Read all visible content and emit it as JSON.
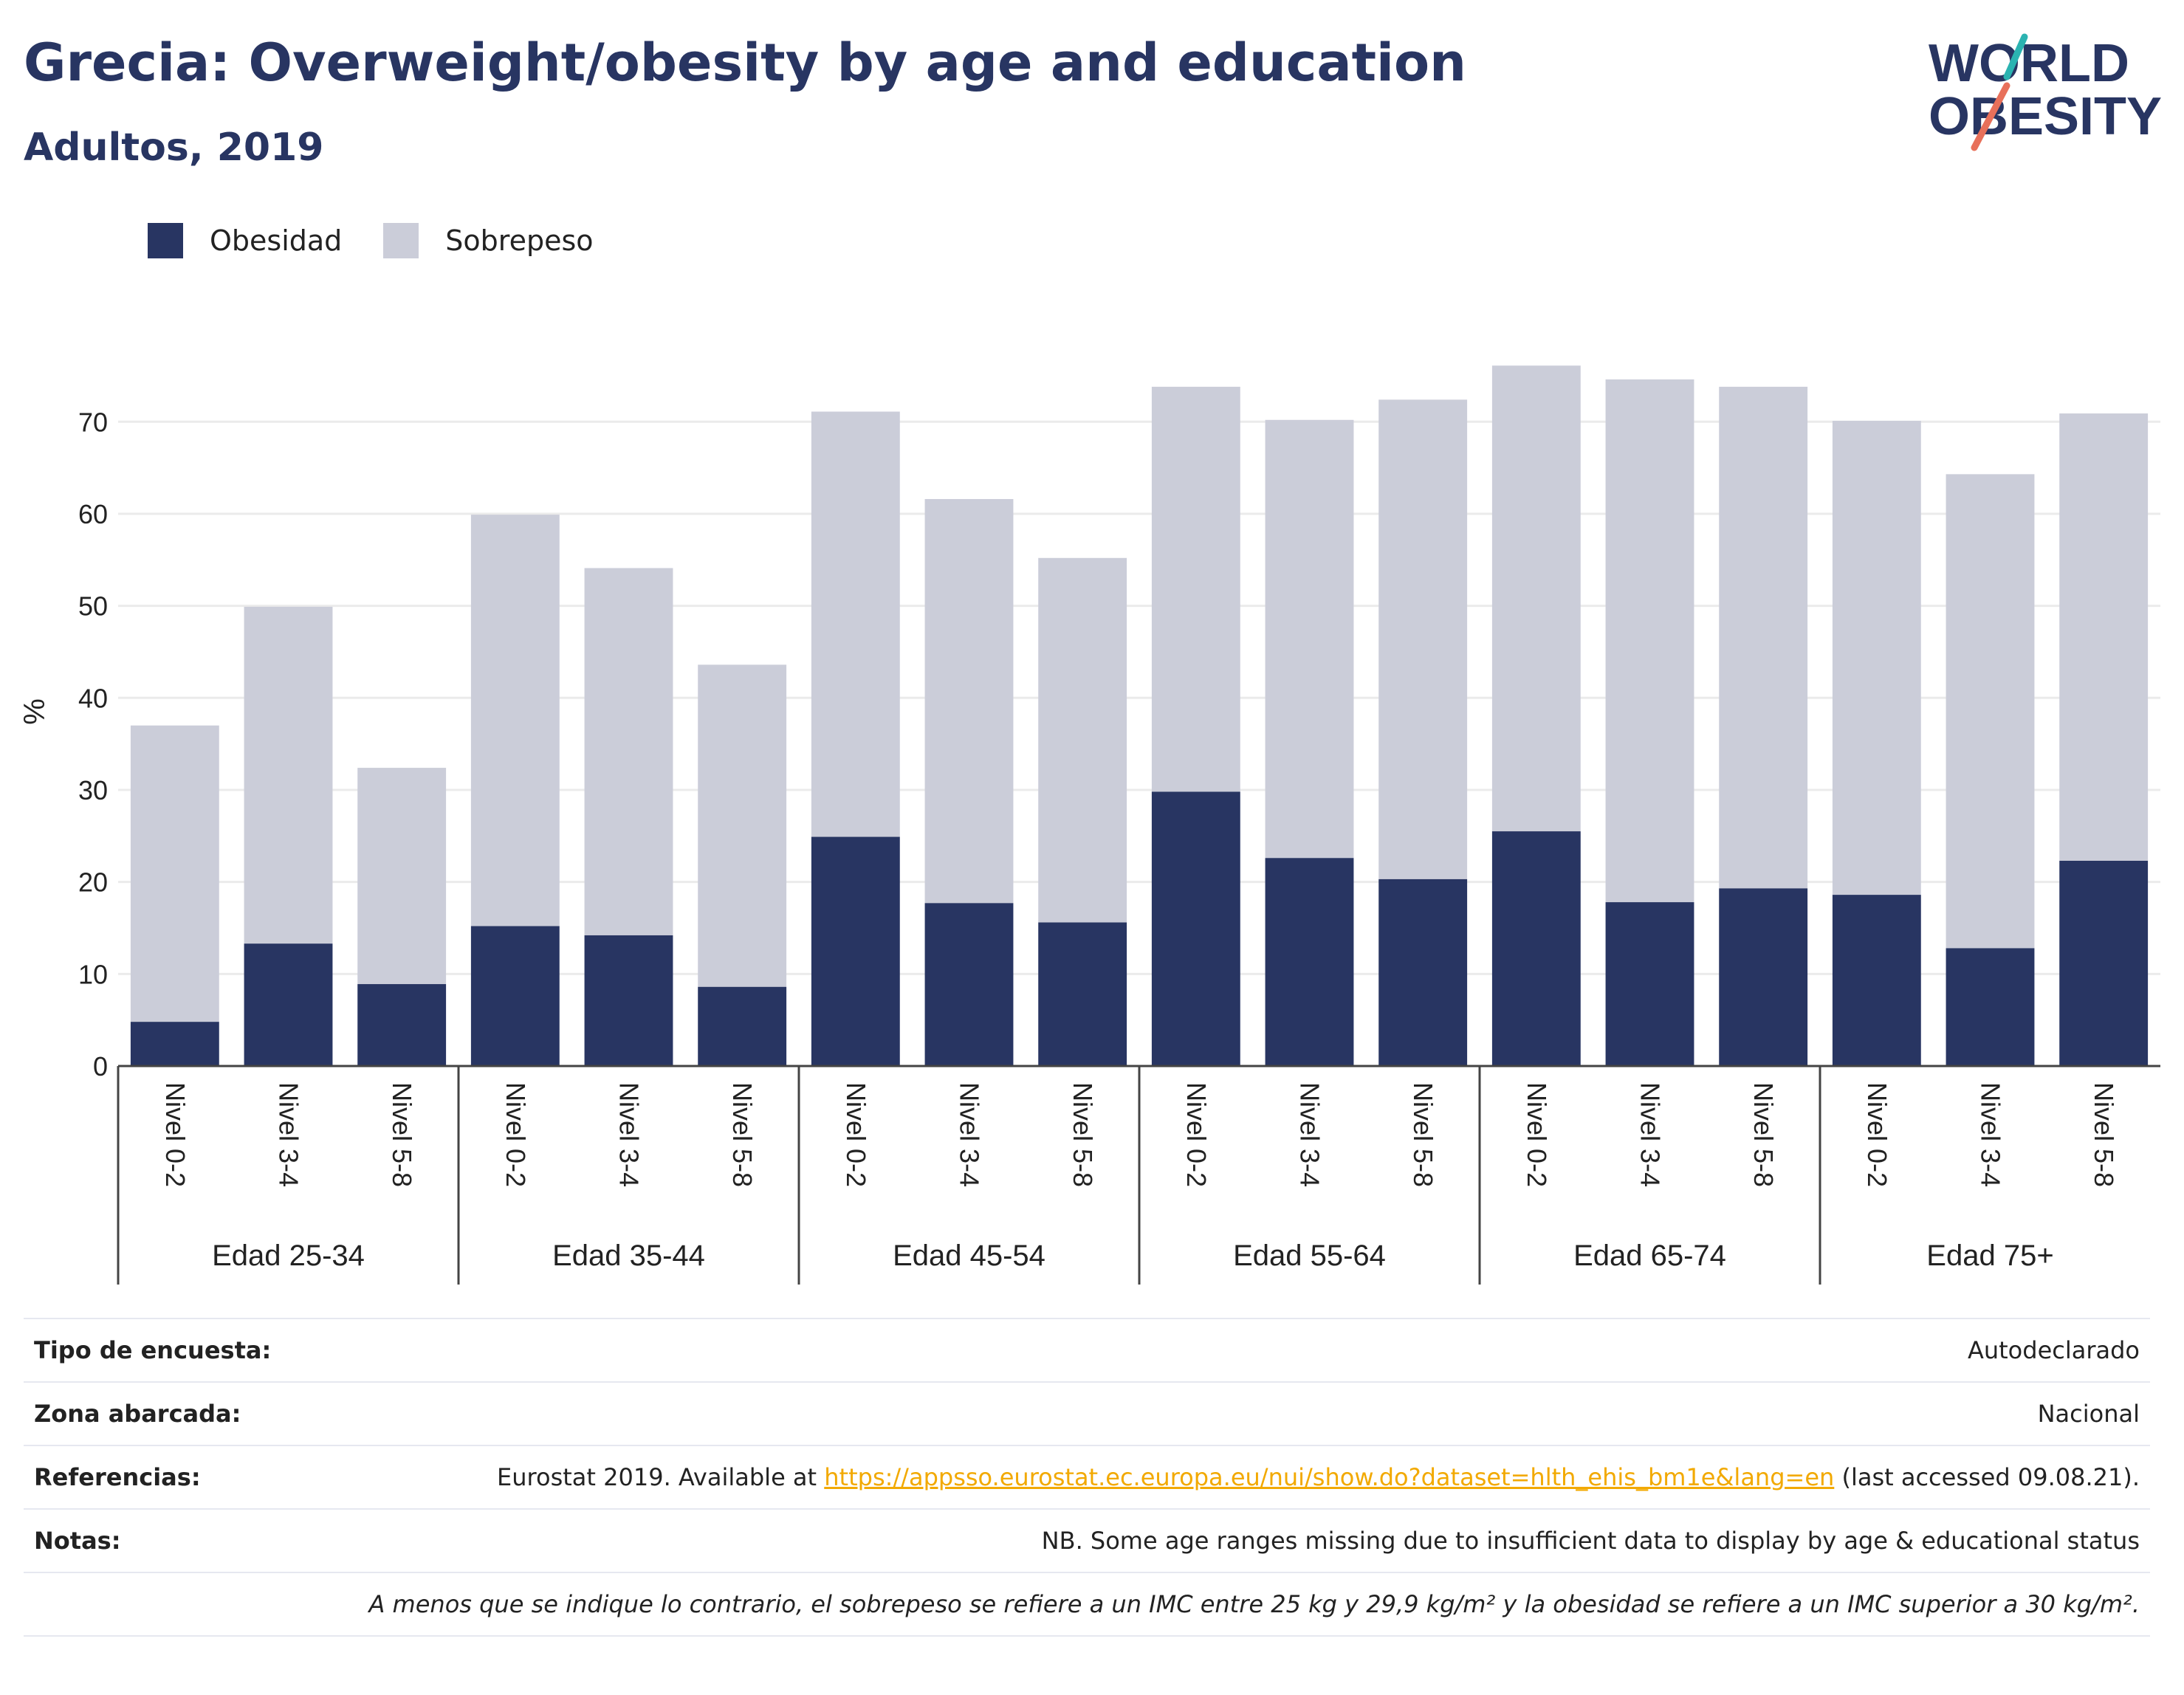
{
  "header": {
    "title": "Grecia: Overweight/obesity by age and education",
    "subtitle": "Adultos, 2019"
  },
  "logo": {
    "line1": "WORLD",
    "line2": "OBESITY",
    "colors": {
      "text": "#283562",
      "slash_top": "#2bb3b1",
      "slash_bottom": "#e8705a"
    }
  },
  "colors": {
    "obesidad": "#283562",
    "sobrepeso": "#cbcdd9",
    "axis": "#444444",
    "grid": "#ebebeb",
    "link": "#f2a900"
  },
  "chart_data": {
    "type": "bar",
    "stacked": true,
    "ylabel": "%",
    "ylim": [
      0,
      77
    ],
    "yticks": [
      0,
      10,
      20,
      30,
      40,
      50,
      60,
      70
    ],
    "grid": true,
    "legend_position": "top-left",
    "groups": [
      "Edad 25-34",
      "Edad 35-44",
      "Edad 45-54",
      "Edad 55-64",
      "Edad 65-74",
      "Edad 75+"
    ],
    "levels": [
      "Nivel 0-2",
      "Nivel 3-4",
      "Nivel 5-8"
    ],
    "series": [
      {
        "name": "Obesidad",
        "color": "#283562",
        "values": [
          4.8,
          13.3,
          8.9,
          15.2,
          14.2,
          8.6,
          24.9,
          17.7,
          15.6,
          29.8,
          22.6,
          20.3,
          25.5,
          17.8,
          19.3,
          18.6,
          12.8,
          22.3
        ]
      },
      {
        "name": "Sobrepeso",
        "color": "#cbcdd9",
        "values": [
          32.2,
          36.6,
          23.5,
          44.7,
          39.9,
          35.0,
          46.2,
          43.9,
          39.6,
          44.0,
          47.6,
          52.1,
          50.6,
          56.8,
          54.5,
          51.5,
          51.5,
          48.6
        ]
      }
    ]
  },
  "info": {
    "rows": [
      {
        "key": "Tipo de encuesta:",
        "value": "Autodeclarado"
      },
      {
        "key": "Zona abarcada:",
        "value": "Nacional"
      },
      {
        "key": "Referencias:",
        "pre": "Eurostat 2019. Available at ",
        "link": "https://appsso.eurostat.ec.europa.eu/nui/show.do?dataset=hlth_ehis_bm1e&lang=en",
        "post": " (last accessed 09.08.21)."
      },
      {
        "key": "Notas:",
        "value": "NB. Some age ranges missing due to insufficient data to display by age & educational status"
      }
    ],
    "disclaimer": "A menos que se indique lo contrario, el sobrepeso se refiere a un IMC entre 25 kg y 29,9 kg/m² y la obesidad se refiere a un IMC superior a 30 kg/m²."
  }
}
